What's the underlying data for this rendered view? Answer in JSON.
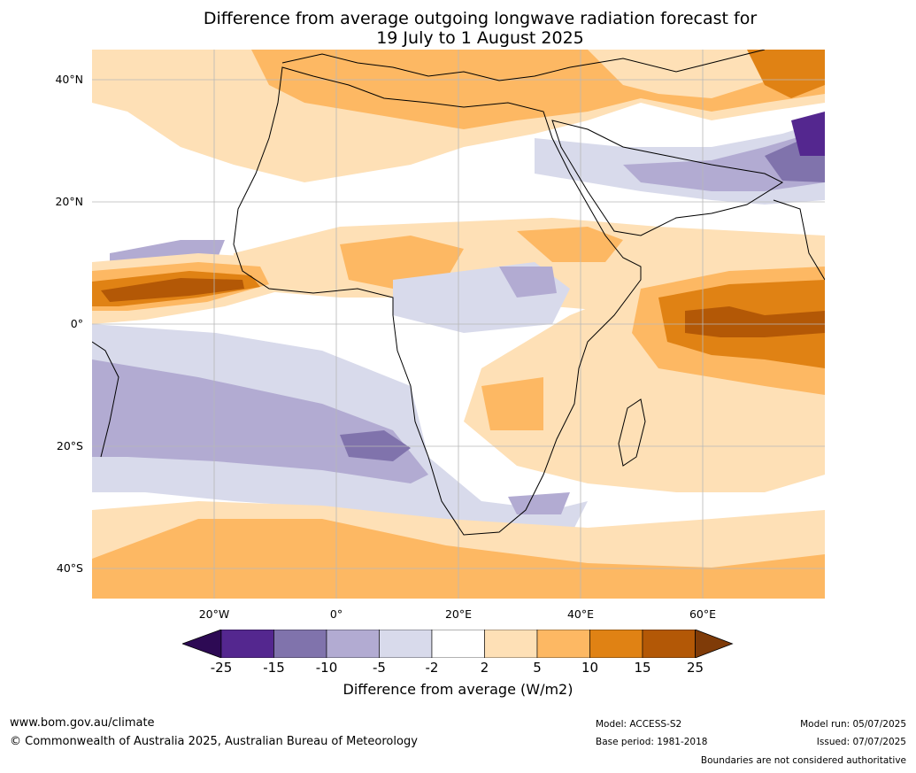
{
  "title_line1": "Difference from average outgoing longwave radiation forecast for",
  "title_line2": "19 July to 1 August 2025",
  "lat_labels": [
    "40°N",
    "20°N",
    "0°",
    "20°S",
    "40°S"
  ],
  "lon_labels": [
    "20°W",
    "0°",
    "20°E",
    "40°E",
    "60°E"
  ],
  "colorbar": {
    "ticks": [
      "-25",
      "-15",
      "-10",
      "-5",
      "-2",
      "2",
      "5",
      "10",
      "15",
      "25"
    ],
    "title": "Difference from average (W/m2)",
    "colors": [
      "#2d0a54",
      "#54278f",
      "#8073ac",
      "#b2abd2",
      "#d8daeb",
      "#ffffff",
      "#fee0b6",
      "#fdb863",
      "#e08214",
      "#b35806",
      "#7f3b08"
    ]
  },
  "footer": {
    "website": "www.bom.gov.au/climate",
    "copyright": "© Commonwealth of Australia 2025, Australian Bureau of Meteorology",
    "model": "Model: ACCESS-S2",
    "base_period": "Base period: 1981-2018",
    "model_run": "Model run: 05/07/2025",
    "issued": "Issued: 07/07/2025",
    "boundaries_note": "Boundaries are not considered authoritative"
  }
}
